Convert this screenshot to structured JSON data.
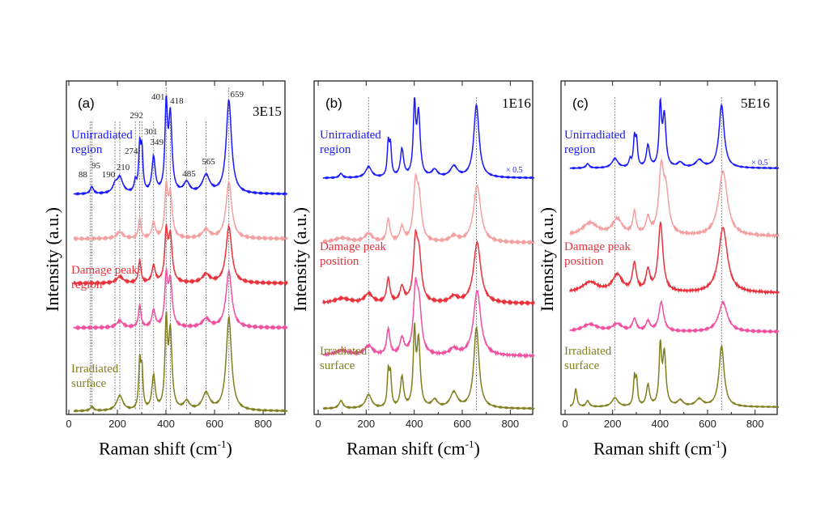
{
  "chart_data": [
    {
      "type": "line",
      "panel": "(a)",
      "dose": "3E15",
      "xlabel": "Raman shift (cm",
      "xlabel_sup": "-1",
      "xlabel_end": ")",
      "ylabel": "Intensity (a.u.)",
      "xlim": [
        0,
        900
      ],
      "xticks": [
        0,
        200,
        400,
        600,
        800
      ],
      "peak_labels": [
        88,
        95,
        190,
        210,
        274,
        292,
        301,
        349,
        401,
        418,
        485,
        565,
        659
      ],
      "labels": [
        {
          "text": "Unirradiated region",
          "color": "#1a1aff"
        },
        {
          "text": "Damage peak region",
          "color": "#e8323c"
        },
        {
          "text": "Irradiated surface",
          "color": "#808020"
        }
      ],
      "traces": [
        {
          "color": "#1a1aff",
          "peaks": [
            [
              95,
              0.08,
              8
            ],
            [
              190,
              0.08,
              10
            ],
            [
              210,
              0.18,
              15
            ],
            [
              274,
              0.12,
              6
            ],
            [
              292,
              0.5,
              5
            ],
            [
              301,
              0.45,
              5
            ],
            [
              349,
              0.4,
              8
            ],
            [
              401,
              0.95,
              6
            ],
            [
              418,
              0.85,
              8
            ],
            [
              485,
              0.12,
              14
            ],
            [
              565,
              0.2,
              18
            ],
            [
              659,
              1.05,
              13
            ]
          ]
        },
        {
          "color": "#f4a0a0",
          "peaks": [
            [
              210,
              0.12,
              15
            ],
            [
              292,
              0.35,
              6
            ],
            [
              349,
              0.28,
              8
            ],
            [
              401,
              0.85,
              7
            ],
            [
              418,
              0.75,
              9
            ],
            [
              565,
              0.15,
              18
            ],
            [
              659,
              1.0,
              14
            ]
          ]
        },
        {
          "color": "#e8323c",
          "peaks": [
            [
              210,
              0.12,
              15
            ],
            [
              292,
              0.4,
              6
            ],
            [
              349,
              0.3,
              8
            ],
            [
              401,
              0.85,
              7
            ],
            [
              418,
              0.8,
              9
            ],
            [
              565,
              0.15,
              18
            ],
            [
              659,
              1.0,
              14
            ]
          ]
        },
        {
          "color": "#f050a0",
          "peaks": [
            [
              210,
              0.12,
              15
            ],
            [
              292,
              0.4,
              6
            ],
            [
              349,
              0.3,
              8
            ],
            [
              401,
              0.85,
              7
            ],
            [
              418,
              0.8,
              9
            ],
            [
              565,
              0.15,
              18
            ],
            [
              659,
              1.0,
              14
            ]
          ]
        },
        {
          "color": "#808020",
          "peaks": [
            [
              95,
              0.05,
              8
            ],
            [
              210,
              0.18,
              15
            ],
            [
              292,
              0.55,
              5
            ],
            [
              301,
              0.45,
              5
            ],
            [
              349,
              0.4,
              8
            ],
            [
              401,
              1.0,
              6
            ],
            [
              418,
              0.9,
              8
            ],
            [
              485,
              0.1,
              14
            ],
            [
              565,
              0.2,
              18
            ],
            [
              659,
              1.1,
              13
            ]
          ]
        }
      ]
    },
    {
      "type": "line",
      "panel": "(b)",
      "dose": "1E16",
      "scale_note": "× 0.5",
      "xlabel": "Raman shift (cm",
      "xlabel_sup": "-1",
      "xlabel_end": ")",
      "ylabel": "Intensity (a.u.)",
      "xlim": [
        0,
        900
      ],
      "xticks": [
        0,
        200,
        400,
        600,
        800
      ],
      "guides": [
        210,
        659
      ],
      "labels": [
        {
          "text": "Unirradiated region",
          "color": "#1a1aff"
        },
        {
          "text": "Damage peak position",
          "color": "#e8323c"
        },
        {
          "text": "Irradiated surface",
          "color": "#808020"
        }
      ],
      "traces": [
        {
          "color": "#1a1aff",
          "peaks": [
            [
              95,
              0.06,
              8
            ],
            [
              210,
              0.15,
              15
            ],
            [
              292,
              0.45,
              5
            ],
            [
              301,
              0.4,
              5
            ],
            [
              349,
              0.38,
              8
            ],
            [
              401,
              0.95,
              6
            ],
            [
              418,
              0.85,
              8
            ],
            [
              485,
              0.1,
              14
            ],
            [
              565,
              0.15,
              18
            ],
            [
              659,
              1.0,
              13
            ]
          ]
        },
        {
          "color": "#f4a0a0",
          "peaks": [
            [
              100,
              0.08,
              40
            ],
            [
              210,
              0.15,
              20
            ],
            [
              292,
              0.4,
              8
            ],
            [
              349,
              0.25,
              10
            ],
            [
              405,
              0.9,
              10
            ],
            [
              420,
              0.7,
              12
            ],
            [
              565,
              0.1,
              20
            ],
            [
              662,
              1.0,
              18
            ]
          ]
        },
        {
          "color": "#e8323c",
          "peaks": [
            [
              100,
              0.08,
              40
            ],
            [
              210,
              0.15,
              20
            ],
            [
              292,
              0.4,
              8
            ],
            [
              349,
              0.25,
              10
            ],
            [
              405,
              0.9,
              10
            ],
            [
              420,
              0.7,
              12
            ],
            [
              565,
              0.1,
              20
            ],
            [
              662,
              1.0,
              18
            ]
          ]
        },
        {
          "color": "#f050a0",
          "peaks": [
            [
              100,
              0.08,
              40
            ],
            [
              210,
              0.15,
              20
            ],
            [
              292,
              0.4,
              8
            ],
            [
              349,
              0.25,
              10
            ],
            [
              405,
              0.9,
              10
            ],
            [
              420,
              0.7,
              12
            ],
            [
              565,
              0.1,
              20
            ],
            [
              662,
              1.0,
              18
            ]
          ]
        },
        {
          "color": "#808020",
          "peaks": [
            [
              95,
              0.1,
              10
            ],
            [
              210,
              0.18,
              15
            ],
            [
              292,
              0.45,
              5
            ],
            [
              301,
              0.4,
              5
            ],
            [
              349,
              0.4,
              8
            ],
            [
              401,
              0.95,
              6
            ],
            [
              418,
              0.85,
              8
            ],
            [
              485,
              0.1,
              14
            ],
            [
              565,
              0.2,
              18
            ],
            [
              659,
              1.05,
              13
            ]
          ]
        }
      ]
    },
    {
      "type": "line",
      "panel": "(c)",
      "dose": "5E16",
      "scale_note": "× 0.5",
      "xlabel": "Raman shift (cm",
      "xlabel_sup": "-1",
      "xlabel_end": ")",
      "ylabel": "Intensity (a.u.)",
      "xlim": [
        0,
        900
      ],
      "xticks": [
        0,
        200,
        400,
        600,
        800
      ],
      "guides": [
        210,
        659
      ],
      "labels": [
        {
          "text": "Unirradiated region",
          "color": "#1a1aff"
        },
        {
          "text": "Damage peak position",
          "color": "#e8323c"
        },
        {
          "text": "Irradiated surface",
          "color": "#808020"
        }
      ],
      "traces": [
        {
          "color": "#1a1aff",
          "peaks": [
            [
              95,
              0.07,
              8
            ],
            [
              210,
              0.15,
              15
            ],
            [
              274,
              0.12,
              6
            ],
            [
              292,
              0.45,
              5
            ],
            [
              301,
              0.4,
              5
            ],
            [
              349,
              0.35,
              8
            ],
            [
              401,
              0.95,
              6
            ],
            [
              418,
              0.8,
              8
            ],
            [
              485,
              0.08,
              14
            ],
            [
              565,
              0.12,
              18
            ],
            [
              659,
              1.0,
              13
            ]
          ]
        },
        {
          "color": "#f4a0a0",
          "peaks": [
            [
              105,
              0.2,
              40
            ],
            [
              220,
              0.25,
              25
            ],
            [
              292,
              0.35,
              8
            ],
            [
              349,
              0.25,
              10
            ],
            [
              405,
              0.95,
              12
            ],
            [
              425,
              0.6,
              14
            ],
            [
              665,
              1.0,
              22
            ]
          ]
        },
        {
          "color": "#e8323c",
          "peaks": [
            [
              105,
              0.15,
              40
            ],
            [
              220,
              0.25,
              25
            ],
            [
              292,
              0.4,
              10
            ],
            [
              349,
              0.3,
              10
            ],
            [
              402,
              1.0,
              12
            ],
            [
              665,
              0.95,
              22
            ]
          ]
        },
        {
          "color": "#f050a0",
          "peaks": [
            [
              105,
              0.15,
              40
            ],
            [
              220,
              0.15,
              25
            ],
            [
              292,
              0.25,
              10
            ],
            [
              349,
              0.2,
              10
            ],
            [
              405,
              0.6,
              12
            ],
            [
              665,
              0.6,
              22
            ]
          ]
        },
        {
          "color": "#808020",
          "peaks": [
            [
              45,
              0.3,
              6
            ],
            [
              95,
              0.1,
              8
            ],
            [
              210,
              0.15,
              15
            ],
            [
              292,
              0.45,
              5
            ],
            [
              301,
              0.4,
              5
            ],
            [
              349,
              0.35,
              8
            ],
            [
              401,
              0.95,
              6
            ],
            [
              418,
              0.85,
              8
            ],
            [
              485,
              0.1,
              14
            ],
            [
              565,
              0.12,
              18
            ],
            [
              659,
              1.0,
              13
            ]
          ]
        }
      ]
    }
  ]
}
